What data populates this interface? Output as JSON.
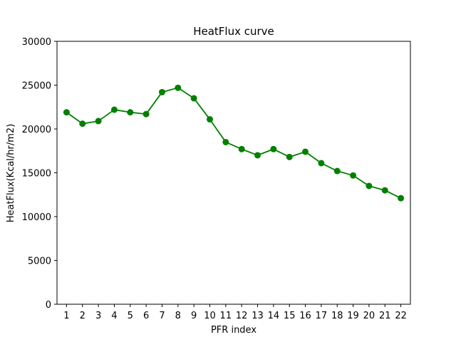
{
  "chart_data": {
    "type": "line",
    "title": "HeatFlux curve",
    "xlabel": "PFR index",
    "ylabel": "HeatFlux(Kcal/hr/m2)",
    "x": [
      1,
      2,
      3,
      4,
      5,
      6,
      7,
      8,
      9,
      10,
      11,
      12,
      13,
      14,
      15,
      16,
      17,
      18,
      19,
      20,
      21,
      22
    ],
    "x_tick_labels": [
      "1",
      "2",
      "3",
      "4",
      "5",
      "6",
      "7",
      "8",
      "9",
      "10",
      "11",
      "12",
      "13",
      "14",
      "15",
      "16",
      "17",
      "18",
      "19",
      "20",
      "21",
      "22"
    ],
    "series": [
      {
        "values": [
          21900,
          20600,
          20900,
          22200,
          21900,
          21700,
          24200,
          24700,
          23500,
          21100,
          18500,
          17700,
          17000,
          17700,
          16800,
          17400,
          16100,
          15200,
          14700,
          13500,
          13000,
          12100
        ],
        "color": "#008000",
        "marker": "circle"
      }
    ],
    "xlim": [
      0.4,
      22.6
    ],
    "ylim": [
      0,
      30000
    ],
    "y_ticks": [
      0,
      5000,
      10000,
      15000,
      20000,
      25000,
      30000
    ],
    "y_tick_labels": [
      "0",
      "5000",
      "10000",
      "15000",
      "20000",
      "25000",
      "30000"
    ],
    "grid": false,
    "legend": "none"
  }
}
